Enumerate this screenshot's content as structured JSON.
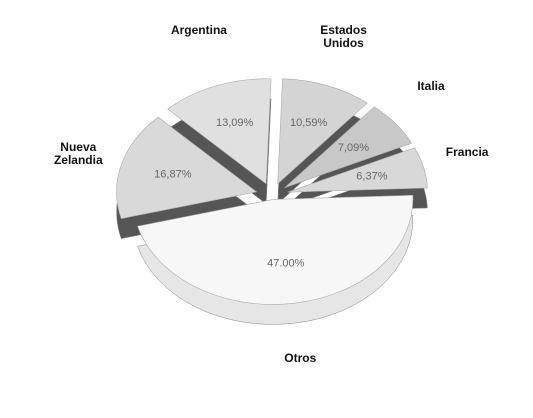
{
  "chart_data": {
    "type": "pie",
    "categories": [
      "Estados Unidos",
      "Italia",
      "Francia",
      "Otros",
      "Nueva Zelandia",
      "Argentina"
    ],
    "values": [
      10.59,
      7.09,
      6.37,
      47.0,
      16.87,
      13.09
    ],
    "value_labels": [
      "10,59%",
      "7,09%",
      "6,37%",
      "47.00%",
      "16,87%",
      "13,09%"
    ],
    "colors": [
      "#d4d4d4",
      "#c8c8c8",
      "#d8d8d8",
      "#f7f7f7",
      "#d9d9d9",
      "#e0e0e0"
    ]
  }
}
